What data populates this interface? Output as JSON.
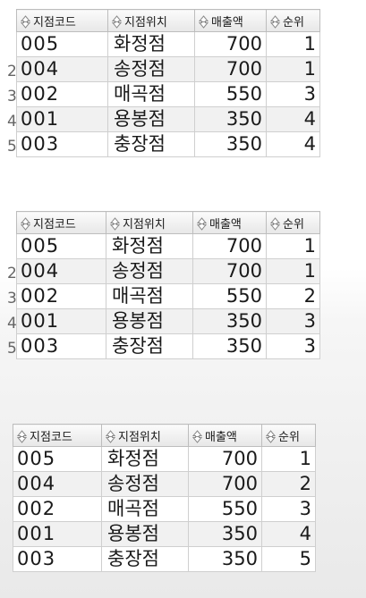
{
  "tables": [
    {
      "columns": [
        "지점코드",
        "지점위치",
        "매출액",
        "순위"
      ],
      "row_numbers": [
        "",
        "2",
        "3",
        "4",
        "5"
      ],
      "rows": [
        {
          "code": "005",
          "location": "화정점",
          "sales": "700",
          "rank": "1"
        },
        {
          "code": "004",
          "location": "송정점",
          "sales": "700",
          "rank": "1"
        },
        {
          "code": "002",
          "location": "매곡점",
          "sales": "550",
          "rank": "3"
        },
        {
          "code": "001",
          "location": "용봉점",
          "sales": "350",
          "rank": "4"
        },
        {
          "code": "003",
          "location": "충장점",
          "sales": "350",
          "rank": "4"
        }
      ]
    },
    {
      "columns": [
        "지점코드",
        "지점위치",
        "매출액",
        "순위"
      ],
      "row_numbers": [
        "",
        "2",
        "3",
        "4",
        "5"
      ],
      "rows": [
        {
          "code": "005",
          "location": "화정점",
          "sales": "700",
          "rank": "1"
        },
        {
          "code": "004",
          "location": "송정점",
          "sales": "700",
          "rank": "1"
        },
        {
          "code": "002",
          "location": "매곡점",
          "sales": "550",
          "rank": "2"
        },
        {
          "code": "001",
          "location": "용봉점",
          "sales": "350",
          "rank": "3"
        },
        {
          "code": "003",
          "location": "충장점",
          "sales": "350",
          "rank": "3"
        }
      ]
    },
    {
      "columns": [
        "지점코드",
        "지점위치",
        "매출액",
        "순위"
      ],
      "rows": [
        {
          "code": "005",
          "location": "화정점",
          "sales": "700",
          "rank": "1"
        },
        {
          "code": "004",
          "location": "송정점",
          "sales": "700",
          "rank": "2"
        },
        {
          "code": "002",
          "location": "매곡점",
          "sales": "550",
          "rank": "3"
        },
        {
          "code": "001",
          "location": "용봉점",
          "sales": "350",
          "rank": "4"
        },
        {
          "code": "003",
          "location": "충장점",
          "sales": "350",
          "rank": "5"
        }
      ]
    }
  ]
}
